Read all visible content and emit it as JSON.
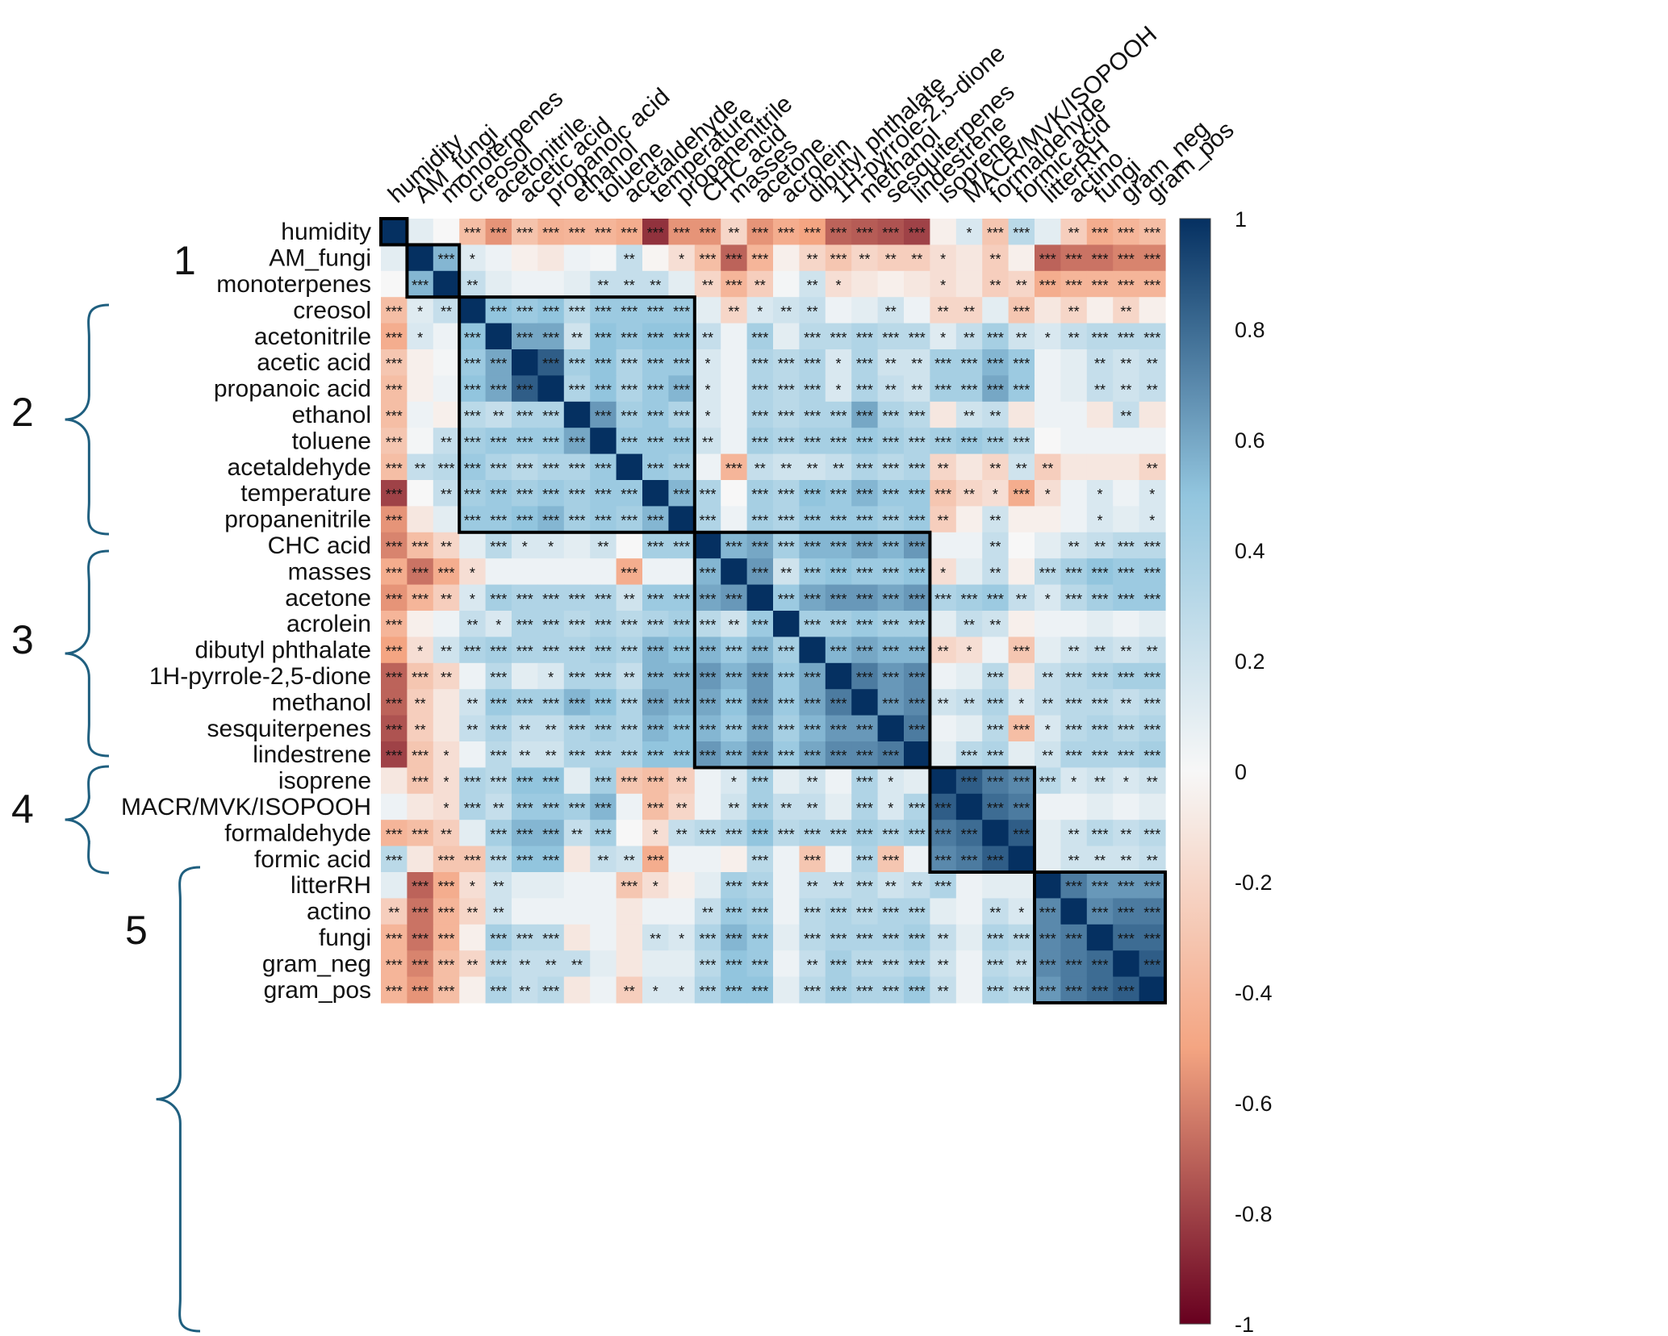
{
  "chart_data": {
    "type": "heatmap",
    "variables": [
      "humidity",
      "AM_fungi",
      "monoterpenes",
      "creosol",
      "acetonitrile",
      "acetic acid",
      "propanoic acid",
      "ethanol",
      "toluene",
      "acetaldehyde",
      "temperature",
      "propanenitrile",
      "CHC acid",
      "masses",
      "acetone",
      "acrolein",
      "dibutyl phthalate",
      "1H-pyrrole-2,5-dione",
      "methanol",
      "sesquiterpenes",
      "lindestrene",
      "isoprene",
      "MACR/MVK/ISOPOOH",
      "formaldehyde",
      "formic acid",
      "litterRH",
      "actino",
      "fungi",
      "gram_neg",
      "gram_pos"
    ],
    "blocks": [
      {
        "label": "1",
        "from": 1,
        "to": 2
      },
      {
        "label": "2",
        "from": 3,
        "to": 11
      },
      {
        "label": "3",
        "from": 12,
        "to": 20
      },
      {
        "label": "4",
        "from": 21,
        "to": 24
      },
      {
        "label": "5",
        "from": 25,
        "to": 29
      }
    ],
    "colorbar": {
      "ticks": [
        "1",
        "0.8",
        "0.6",
        "0.4",
        "0.2",
        "0",
        "-0.2",
        "-0.4",
        "-0.6",
        "-0.8",
        "-1"
      ],
      "range": [
        -1,
        1
      ],
      "colors": {
        "neg": "#67001f",
        "neg_mid": "#f4a582",
        "zero": "#f7f7f7",
        "pos_mid": "#92c5de",
        "pos": "#053061"
      }
    },
    "matrix": [
      [
        1.0,
        0.1,
        0.0,
        -0.35,
        -0.55,
        -0.32,
        -0.42,
        -0.4,
        -0.4,
        -0.45,
        -0.85,
        -0.55,
        -0.55,
        -0.2,
        -0.55,
        -0.45,
        -0.5,
        -0.7,
        -0.72,
        -0.75,
        -0.8,
        -0.05,
        0.15,
        -0.3,
        0.3,
        0.1,
        -0.25,
        -0.45,
        -0.4,
        -0.35
      ],
      [
        0.1,
        1.0,
        0.55,
        0.12,
        0.05,
        -0.05,
        -0.1,
        0.05,
        0.02,
        0.25,
        -0.02,
        -0.15,
        -0.35,
        -0.7,
        -0.4,
        -0.05,
        -0.2,
        -0.3,
        -0.2,
        -0.25,
        -0.25,
        -0.15,
        -0.1,
        -0.25,
        -0.05,
        -0.7,
        -0.65,
        -0.65,
        -0.6,
        -0.6
      ],
      [
        0.0,
        0.55,
        1.0,
        0.25,
        0.1,
        0.05,
        0.05,
        0.1,
        0.25,
        0.25,
        0.25,
        0.1,
        -0.2,
        -0.4,
        -0.25,
        0.02,
        0.2,
        -0.15,
        -0.1,
        -0.05,
        -0.1,
        -0.15,
        -0.1,
        -0.25,
        -0.2,
        -0.45,
        -0.4,
        -0.4,
        -0.4,
        -0.4
      ],
      [
        -0.35,
        0.12,
        0.25,
        1.0,
        0.5,
        0.45,
        0.5,
        0.3,
        0.45,
        0.45,
        0.45,
        0.45,
        0.1,
        -0.2,
        0.15,
        0.2,
        0.25,
        0.05,
        0.1,
        0.2,
        0.05,
        -0.2,
        -0.2,
        0.1,
        -0.3,
        -0.1,
        -0.2,
        -0.05,
        -0.2,
        -0.05
      ],
      [
        -0.45,
        0.15,
        0.05,
        0.5,
        1.0,
        0.6,
        0.6,
        0.2,
        0.5,
        0.45,
        0.5,
        0.5,
        0.25,
        0.05,
        0.4,
        0.1,
        0.3,
        0.3,
        0.35,
        0.3,
        0.3,
        0.12,
        0.25,
        0.4,
        0.2,
        0.15,
        0.25,
        0.3,
        0.3,
        0.3
      ],
      [
        -0.3,
        -0.05,
        0.02,
        0.45,
        0.6,
        1.0,
        0.85,
        0.4,
        0.5,
        0.35,
        0.45,
        0.45,
        0.15,
        0.05,
        0.35,
        0.3,
        0.35,
        0.15,
        0.35,
        0.2,
        0.2,
        0.4,
        0.4,
        0.55,
        0.45,
        0.05,
        0.1,
        0.25,
        0.2,
        0.25
      ],
      [
        -0.35,
        -0.05,
        0.05,
        0.5,
        0.6,
        0.85,
        1.0,
        0.35,
        0.5,
        0.35,
        0.45,
        0.55,
        0.15,
        0.05,
        0.35,
        0.3,
        0.35,
        0.15,
        0.35,
        0.25,
        0.2,
        0.4,
        0.4,
        0.6,
        0.45,
        0.05,
        0.1,
        0.25,
        0.2,
        0.25
      ],
      [
        -0.35,
        0.05,
        -0.05,
        0.3,
        0.25,
        0.35,
        0.35,
        1.0,
        0.65,
        0.4,
        0.45,
        0.35,
        0.15,
        0.05,
        0.35,
        0.3,
        0.35,
        0.35,
        0.6,
        0.35,
        0.3,
        -0.1,
        0.2,
        0.25,
        -0.1,
        0.05,
        0.05,
        -0.1,
        0.25,
        -0.1
      ],
      [
        -0.3,
        0.02,
        0.25,
        0.4,
        0.45,
        0.45,
        0.45,
        0.6,
        1.0,
        0.45,
        0.45,
        0.45,
        0.2,
        0.05,
        0.4,
        0.35,
        0.4,
        0.4,
        0.45,
        0.4,
        0.35,
        0.4,
        0.45,
        0.4,
        0.3,
        0.0,
        0.05,
        0.05,
        0.05,
        0.05
      ],
      [
        -0.35,
        0.25,
        0.3,
        0.45,
        0.35,
        0.3,
        0.35,
        0.35,
        0.45,
        1.0,
        0.45,
        0.4,
        0.05,
        -0.4,
        0.25,
        0.2,
        0.2,
        0.25,
        0.35,
        0.3,
        0.35,
        -0.2,
        -0.1,
        -0.2,
        0.2,
        -0.25,
        -0.1,
        -0.1,
        -0.1,
        -0.2
      ],
      [
        -0.8,
        0.0,
        0.25,
        0.4,
        0.45,
        0.4,
        0.45,
        0.4,
        0.45,
        0.45,
        1.0,
        0.55,
        0.35,
        0.0,
        0.4,
        0.35,
        0.5,
        0.45,
        0.55,
        0.45,
        0.45,
        -0.3,
        -0.2,
        -0.15,
        -0.45,
        -0.15,
        0.05,
        0.15,
        0.05,
        0.15
      ],
      [
        -0.55,
        -0.1,
        0.1,
        0.45,
        0.45,
        0.5,
        0.55,
        0.4,
        0.45,
        0.4,
        0.55,
        1.0,
        0.35,
        0.05,
        0.4,
        0.35,
        0.45,
        0.45,
        0.45,
        0.4,
        0.45,
        -0.25,
        -0.05,
        0.2,
        -0.05,
        -0.05,
        0.05,
        0.15,
        0.1,
        0.15
      ],
      [
        -0.6,
        -0.35,
        -0.2,
        0.1,
        0.3,
        0.15,
        0.15,
        0.1,
        0.2,
        0.0,
        0.4,
        0.4,
        1.0,
        0.55,
        0.6,
        0.4,
        0.55,
        0.55,
        0.6,
        0.55,
        0.65,
        0.05,
        0.05,
        0.25,
        0.0,
        0.1,
        0.2,
        0.25,
        0.3,
        0.3
      ],
      [
        -0.45,
        -0.65,
        -0.45,
        -0.15,
        0.05,
        0.05,
        0.05,
        0.05,
        0.05,
        -0.45,
        0.05,
        0.05,
        0.55,
        1.0,
        0.65,
        0.2,
        0.45,
        0.5,
        0.45,
        0.45,
        0.5,
        -0.15,
        0.1,
        0.25,
        -0.05,
        0.3,
        0.4,
        0.5,
        0.45,
        0.45
      ],
      [
        -0.55,
        -0.4,
        -0.25,
        0.15,
        0.4,
        0.35,
        0.35,
        0.35,
        0.35,
        0.2,
        0.45,
        0.45,
        0.6,
        0.65,
        1.0,
        0.45,
        0.6,
        0.65,
        0.65,
        0.6,
        0.65,
        0.35,
        0.4,
        0.45,
        0.25,
        0.15,
        0.3,
        0.4,
        0.45,
        0.45
      ],
      [
        -0.4,
        -0.05,
        0.05,
        0.25,
        0.15,
        0.35,
        0.35,
        0.3,
        0.35,
        0.3,
        0.35,
        0.4,
        0.3,
        0.2,
        0.45,
        1.0,
        0.4,
        0.4,
        0.45,
        0.4,
        0.4,
        0.1,
        0.25,
        0.2,
        -0.05,
        0.05,
        0.05,
        0.1,
        0.05,
        0.1
      ],
      [
        -0.5,
        -0.15,
        0.2,
        0.35,
        0.4,
        0.35,
        0.35,
        0.35,
        0.4,
        0.35,
        0.55,
        0.5,
        0.55,
        0.45,
        0.55,
        0.4,
        1.0,
        0.55,
        0.6,
        0.55,
        0.55,
        -0.2,
        -0.15,
        0.05,
        -0.3,
        0.1,
        0.2,
        0.25,
        0.2,
        0.25
      ],
      [
        -0.7,
        -0.3,
        -0.2,
        0.05,
        0.3,
        0.1,
        0.15,
        0.35,
        0.35,
        0.25,
        0.55,
        0.55,
        0.65,
        0.55,
        0.65,
        0.45,
        0.6,
        1.0,
        0.75,
        0.65,
        0.7,
        0.05,
        0.1,
        0.3,
        -0.1,
        0.25,
        0.3,
        0.35,
        0.4,
        0.4
      ],
      [
        -0.7,
        -0.25,
        -0.1,
        0.2,
        0.45,
        0.4,
        0.4,
        0.55,
        0.5,
        0.35,
        0.6,
        0.55,
        0.6,
        0.5,
        0.65,
        0.45,
        0.6,
        0.75,
        1.0,
        0.65,
        0.7,
        0.2,
        0.25,
        0.35,
        0.15,
        0.25,
        0.3,
        0.3,
        0.25,
        0.3
      ],
      [
        -0.75,
        -0.25,
        -0.1,
        0.25,
        0.35,
        0.25,
        0.25,
        0.35,
        0.4,
        0.35,
        0.55,
        0.5,
        0.55,
        0.45,
        0.6,
        0.4,
        0.55,
        0.65,
        0.65,
        1.0,
        0.75,
        0.05,
        0.1,
        0.3,
        -0.35,
        0.15,
        0.3,
        0.35,
        0.3,
        0.35
      ],
      [
        -0.8,
        -0.3,
        -0.15,
        0.05,
        0.3,
        0.2,
        0.2,
        0.35,
        0.35,
        0.35,
        0.5,
        0.5,
        0.65,
        0.55,
        0.65,
        0.45,
        0.6,
        0.7,
        0.7,
        0.75,
        1.0,
        0.1,
        0.3,
        0.35,
        0.1,
        0.2,
        0.35,
        0.35,
        0.35,
        0.4
      ],
      [
        -0.1,
        -0.3,
        -0.15,
        0.35,
        0.3,
        0.5,
        0.5,
        0.1,
        0.4,
        -0.3,
        -0.35,
        -0.25,
        0.05,
        0.15,
        0.4,
        0.1,
        0.2,
        0.05,
        0.35,
        0.15,
        0.1,
        1.0,
        0.85,
        0.75,
        0.7,
        0.3,
        0.15,
        0.2,
        0.15,
        0.2
      ],
      [
        0.05,
        -0.1,
        -0.15,
        0.35,
        0.25,
        0.45,
        0.45,
        0.4,
        0.55,
        0.05,
        -0.35,
        -0.2,
        0.05,
        0.2,
        0.4,
        0.25,
        0.25,
        0.1,
        0.35,
        0.15,
        0.35,
        0.85,
        1.0,
        0.8,
        0.75,
        0.05,
        0.05,
        0.1,
        0.05,
        0.1
      ],
      [
        -0.4,
        -0.35,
        -0.25,
        0.1,
        0.4,
        0.55,
        0.55,
        0.25,
        0.4,
        0.0,
        -0.15,
        0.25,
        0.3,
        0.35,
        0.5,
        0.3,
        0.35,
        0.35,
        0.4,
        0.35,
        0.4,
        0.75,
        0.8,
        1.0,
        0.85,
        0.1,
        0.2,
        0.3,
        0.25,
        0.3
      ],
      [
        0.3,
        -0.1,
        -0.3,
        -0.3,
        0.3,
        0.5,
        0.5,
        -0.1,
        0.25,
        0.2,
        -0.45,
        0.05,
        0.05,
        -0.05,
        0.3,
        0.05,
        -0.3,
        0.05,
        0.35,
        -0.3,
        0.05,
        0.7,
        0.75,
        0.85,
        1.0,
        0.1,
        0.2,
        0.2,
        0.2,
        0.25
      ],
      [
        0.1,
        -0.7,
        -0.45,
        -0.15,
        0.2,
        0.1,
        0.1,
        0.05,
        0.05,
        -0.3,
        -0.15,
        -0.05,
        0.1,
        0.4,
        0.35,
        0.05,
        0.25,
        0.25,
        0.3,
        0.2,
        0.25,
        0.35,
        0.05,
        0.1,
        0.1,
        1.0,
        0.75,
        0.65,
        0.65,
        0.65
      ],
      [
        -0.25,
        -0.65,
        -0.4,
        -0.2,
        0.2,
        0.05,
        0.05,
        0.05,
        0.05,
        -0.1,
        0.05,
        0.05,
        0.25,
        0.45,
        0.4,
        0.05,
        0.3,
        0.35,
        0.3,
        0.35,
        0.35,
        0.1,
        0.05,
        0.25,
        0.15,
        0.7,
        1.0,
        0.7,
        0.75,
        0.75
      ],
      [
        -0.4,
        -0.65,
        -0.4,
        -0.05,
        0.4,
        0.3,
        0.3,
        -0.1,
        0.05,
        -0.1,
        0.2,
        0.15,
        0.35,
        0.55,
        0.45,
        0.1,
        0.3,
        0.35,
        0.35,
        0.35,
        0.4,
        0.25,
        0.1,
        0.35,
        0.3,
        0.7,
        0.75,
        1.0,
        0.8,
        0.8
      ],
      [
        -0.4,
        -0.6,
        -0.35,
        -0.2,
        0.3,
        0.25,
        0.25,
        0.25,
        0.1,
        -0.1,
        0.1,
        0.1,
        0.3,
        0.5,
        0.45,
        0.05,
        0.25,
        0.4,
        0.3,
        0.3,
        0.35,
        0.2,
        0.05,
        0.3,
        0.25,
        0.7,
        0.75,
        0.8,
        1.0,
        0.85
      ],
      [
        -0.4,
        -0.55,
        -0.35,
        -0.05,
        0.35,
        0.25,
        0.3,
        -0.1,
        0.05,
        -0.25,
        0.15,
        0.15,
        0.35,
        0.5,
        0.5,
        0.1,
        0.3,
        0.4,
        0.35,
        0.35,
        0.45,
        0.25,
        0.05,
        0.35,
        0.3,
        0.65,
        0.75,
        0.8,
        0.85,
        1.0
      ]
    ]
  }
}
